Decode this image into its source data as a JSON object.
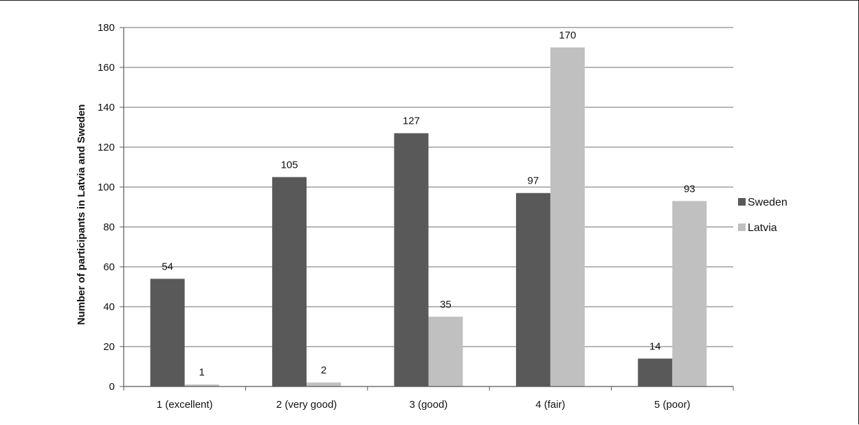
{
  "chart_data": {
    "type": "bar",
    "title": "",
    "xlabel": "",
    "ylabel": "Number of participants in Latvia and Sweden",
    "categories": [
      "1 (excellent)",
      "2 (very good)",
      "3 (good)",
      "4 (fair)",
      "5 (poor)"
    ],
    "series": [
      {
        "name": "Sweden",
        "color": "#595959",
        "values": [
          54,
          105,
          127,
          97,
          14
        ]
      },
      {
        "name": "Latvia",
        "color": "#c0c0c0",
        "values": [
          1,
          2,
          35,
          170,
          93
        ]
      }
    ],
    "ylim": [
      0,
      180
    ],
    "yticks": [
      0,
      20,
      40,
      60,
      80,
      100,
      120,
      140,
      160,
      180
    ],
    "grid": true,
    "legend_position": "right",
    "data_labels": true
  }
}
